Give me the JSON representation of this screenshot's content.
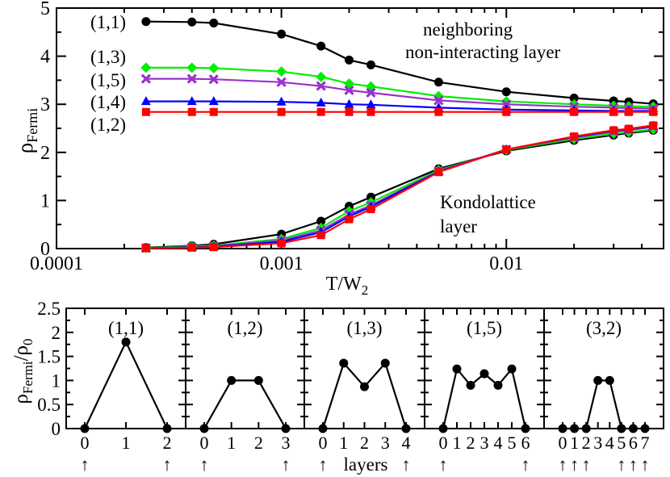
{
  "chart_data": [
    {
      "type": "line",
      "title": "",
      "xlabel": "T/W",
      "xlabel_sub": "2",
      "ylabel": "ρ",
      "ylabel_sub": "Fermi",
      "xscale": "log",
      "xlim": [
        0.0001,
        0.05
      ],
      "ylim": [
        0,
        5
      ],
      "x_ticks": [
        0.0001,
        0.001,
        0.01
      ],
      "x_tick_labels": [
        "0.0001",
        "0.001",
        "0.01"
      ],
      "y_ticks": [
        0,
        1,
        2,
        3,
        4,
        5
      ],
      "y_tick_labels": [
        "0",
        "1",
        "2",
        "3",
        "4",
        "5"
      ],
      "x": [
        0.00025,
        0.0004,
        0.0005,
        0.001,
        0.0015,
        0.002,
        0.0025,
        0.005,
        0.01,
        0.02,
        0.03,
        0.035,
        0.045
      ],
      "annotations": [
        {
          "text": "neighboring",
          "anchor": "upper-right-line1"
        },
        {
          "text": "non-interacting layer",
          "anchor": "upper-right-line2"
        },
        {
          "text": "Kondolattice",
          "anchor": "lower-right-line1"
        },
        {
          "text": "layer",
          "anchor": "lower-right-line2"
        }
      ],
      "series": [
        {
          "name": "(1,1)",
          "layer": "upper",
          "color": "#000000",
          "marker": "circle",
          "values": [
            4.72,
            4.71,
            4.69,
            4.46,
            4.21,
            3.92,
            3.82,
            3.46,
            3.26,
            3.13,
            3.07,
            3.05,
            3.01
          ]
        },
        {
          "name": "(1,3)",
          "layer": "upper",
          "color": "#00ee00",
          "marker": "diamond",
          "values": [
            3.76,
            3.76,
            3.75,
            3.68,
            3.57,
            3.43,
            3.37,
            3.17,
            3.06,
            3.0,
            2.97,
            2.96,
            2.95
          ]
        },
        {
          "name": "(1,5)",
          "layer": "upper",
          "color": "#9a32cd",
          "marker": "cross",
          "values": [
            3.53,
            3.53,
            3.52,
            3.46,
            3.38,
            3.29,
            3.24,
            3.08,
            3.0,
            2.95,
            2.93,
            2.92,
            2.91
          ]
        },
        {
          "name": "(1,4)",
          "layer": "upper",
          "color": "#0000ff",
          "marker": "triangle",
          "values": [
            3.06,
            3.06,
            3.06,
            3.05,
            3.03,
            3.0,
            2.99,
            2.93,
            2.89,
            2.87,
            2.86,
            2.86,
            2.86
          ]
        },
        {
          "name": "(1,2)",
          "layer": "upper",
          "color": "#ff0000",
          "marker": "square",
          "values": [
            2.84,
            2.84,
            2.84,
            2.84,
            2.84,
            2.84,
            2.84,
            2.84,
            2.84,
            2.84,
            2.84,
            2.84,
            2.84
          ]
        },
        {
          "name": "(1,1)",
          "layer": "lower",
          "color": "#000000",
          "marker": "circle",
          "values": [
            0.02,
            0.06,
            0.09,
            0.3,
            0.57,
            0.88,
            1.07,
            1.66,
            2.03,
            2.25,
            2.36,
            2.4,
            2.46
          ]
        },
        {
          "name": "(1,3)",
          "layer": "lower",
          "color": "#00ee00",
          "marker": "diamond",
          "values": [
            0.01,
            0.05,
            0.06,
            0.2,
            0.43,
            0.78,
            0.96,
            1.63,
            2.05,
            2.28,
            2.39,
            2.42,
            2.48
          ]
        },
        {
          "name": "(1,5)",
          "layer": "lower",
          "color": "#9a32cd",
          "marker": "cross",
          "values": [
            0.01,
            0.03,
            0.05,
            0.17,
            0.38,
            0.71,
            0.9,
            1.61,
            2.06,
            2.31,
            2.43,
            2.46,
            2.53
          ]
        },
        {
          "name": "(1,4)",
          "layer": "lower",
          "color": "#0000ff",
          "marker": "triangle",
          "values": [
            0.01,
            0.03,
            0.04,
            0.14,
            0.34,
            0.67,
            0.87,
            1.6,
            2.06,
            2.32,
            2.45,
            2.48,
            2.55
          ]
        },
        {
          "name": "(1,2)",
          "layer": "lower",
          "color": "#ff0000",
          "marker": "square",
          "values": [
            0.01,
            0.02,
            0.03,
            0.11,
            0.28,
            0.61,
            0.82,
            1.59,
            2.06,
            2.33,
            2.46,
            2.49,
            2.56
          ]
        }
      ]
    },
    {
      "type": "line",
      "title": "",
      "xlabel": "layers",
      "ylabel": "ρ",
      "ylabel_sub": "Fermi",
      "ylabel_tail": "/ρ",
      "ylabel_tail_sub": "0",
      "ylim": [
        0,
        2.5
      ],
      "y_ticks": [
        0,
        0.5,
        1,
        1.5,
        2,
        2.5
      ],
      "y_tick_labels": [
        "0",
        "0.5",
        "1",
        "1.5",
        "2",
        "2.5"
      ],
      "arrow_symbol": "↑",
      "panels": [
        {
          "label": "(1,1)",
          "layers": [
            0,
            1,
            2
          ],
          "values": [
            0,
            1.8,
            0
          ],
          "tick_labels": [
            "0",
            "1",
            "2"
          ],
          "arrows": [
            0,
            2
          ]
        },
        {
          "label": "(1,2)",
          "layers": [
            0,
            1,
            2,
            3
          ],
          "values": [
            0,
            1.0,
            1.0,
            0
          ],
          "tick_labels": [
            "0",
            "1",
            "2",
            "3"
          ],
          "arrows": [
            0,
            3
          ]
        },
        {
          "label": "(1,3)",
          "layers": [
            0,
            1,
            2,
            3,
            4
          ],
          "values": [
            0,
            1.36,
            0.87,
            1.36,
            0
          ],
          "tick_labels": [
            "0",
            "1",
            "2",
            "3",
            "4"
          ],
          "arrows": [
            0,
            4
          ]
        },
        {
          "label": "(1,5)",
          "layers": [
            0,
            1,
            2,
            3,
            4,
            5,
            6
          ],
          "values": [
            0,
            1.24,
            0.9,
            1.14,
            0.9,
            1.24,
            0
          ],
          "tick_labels": [
            "0",
            "1",
            "2",
            "3",
            "4",
            "5",
            "6"
          ],
          "arrows": [
            0,
            6
          ]
        },
        {
          "label": "(3,2)",
          "layers": [
            0,
            1,
            2,
            3,
            4,
            5,
            6,
            7
          ],
          "values": [
            0,
            0,
            0,
            1.0,
            1.0,
            0,
            0,
            0
          ],
          "tick_labels": [
            "0",
            "1",
            "2",
            "3",
            "4",
            "5",
            "6",
            "7"
          ],
          "arrows": [
            0,
            1,
            2,
            5,
            6,
            7
          ]
        }
      ]
    }
  ]
}
